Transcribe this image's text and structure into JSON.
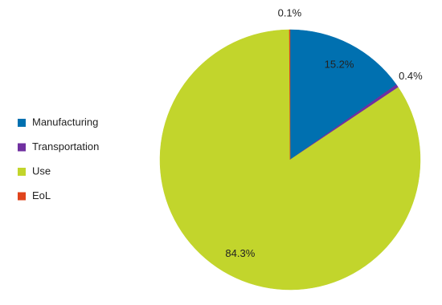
{
  "chart_data": {
    "type": "pie",
    "categories": [
      "Manufacturing",
      "Transportation",
      "Use",
      "EoL"
    ],
    "values": [
      15.2,
      0.4,
      84.3,
      0.1
    ],
    "value_labels": [
      "15.2%",
      "0.4%",
      "84.3%",
      "0.1%"
    ],
    "colors": [
      "#0070b0",
      "#7030a0",
      "#c2d52c",
      "#e0441c"
    ],
    "legend": "left"
  }
}
